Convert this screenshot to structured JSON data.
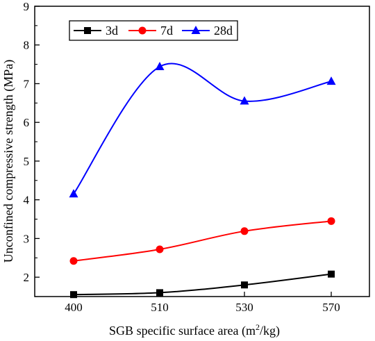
{
  "chart_data": {
    "type": "line",
    "categories": [
      "400",
      "510",
      "530",
      "570"
    ],
    "xlabel_main": "SGB specific surface area (m",
    "xlabel_sup": "2",
    "xlabel_tail": "/kg)",
    "ylabel": "Unconfined compressive strength (MPa)",
    "ylim": [
      1.5,
      9
    ],
    "yticks": [
      2,
      3,
      4,
      5,
      6,
      7,
      8,
      9
    ],
    "grid": false,
    "legend_position": "top-left",
    "series": [
      {
        "name": "3d",
        "values": [
          1.55,
          1.6,
          1.8,
          2.08
        ],
        "color": "#000000",
        "marker": "square"
      },
      {
        "name": "7d",
        "values": [
          2.42,
          2.72,
          3.19,
          3.45
        ],
        "color": "#ff0000",
        "marker": "circle"
      },
      {
        "name": "28d",
        "values": [
          4.15,
          7.44,
          6.55,
          7.06
        ],
        "color": "#0000ff",
        "marker": "triangle"
      }
    ]
  }
}
